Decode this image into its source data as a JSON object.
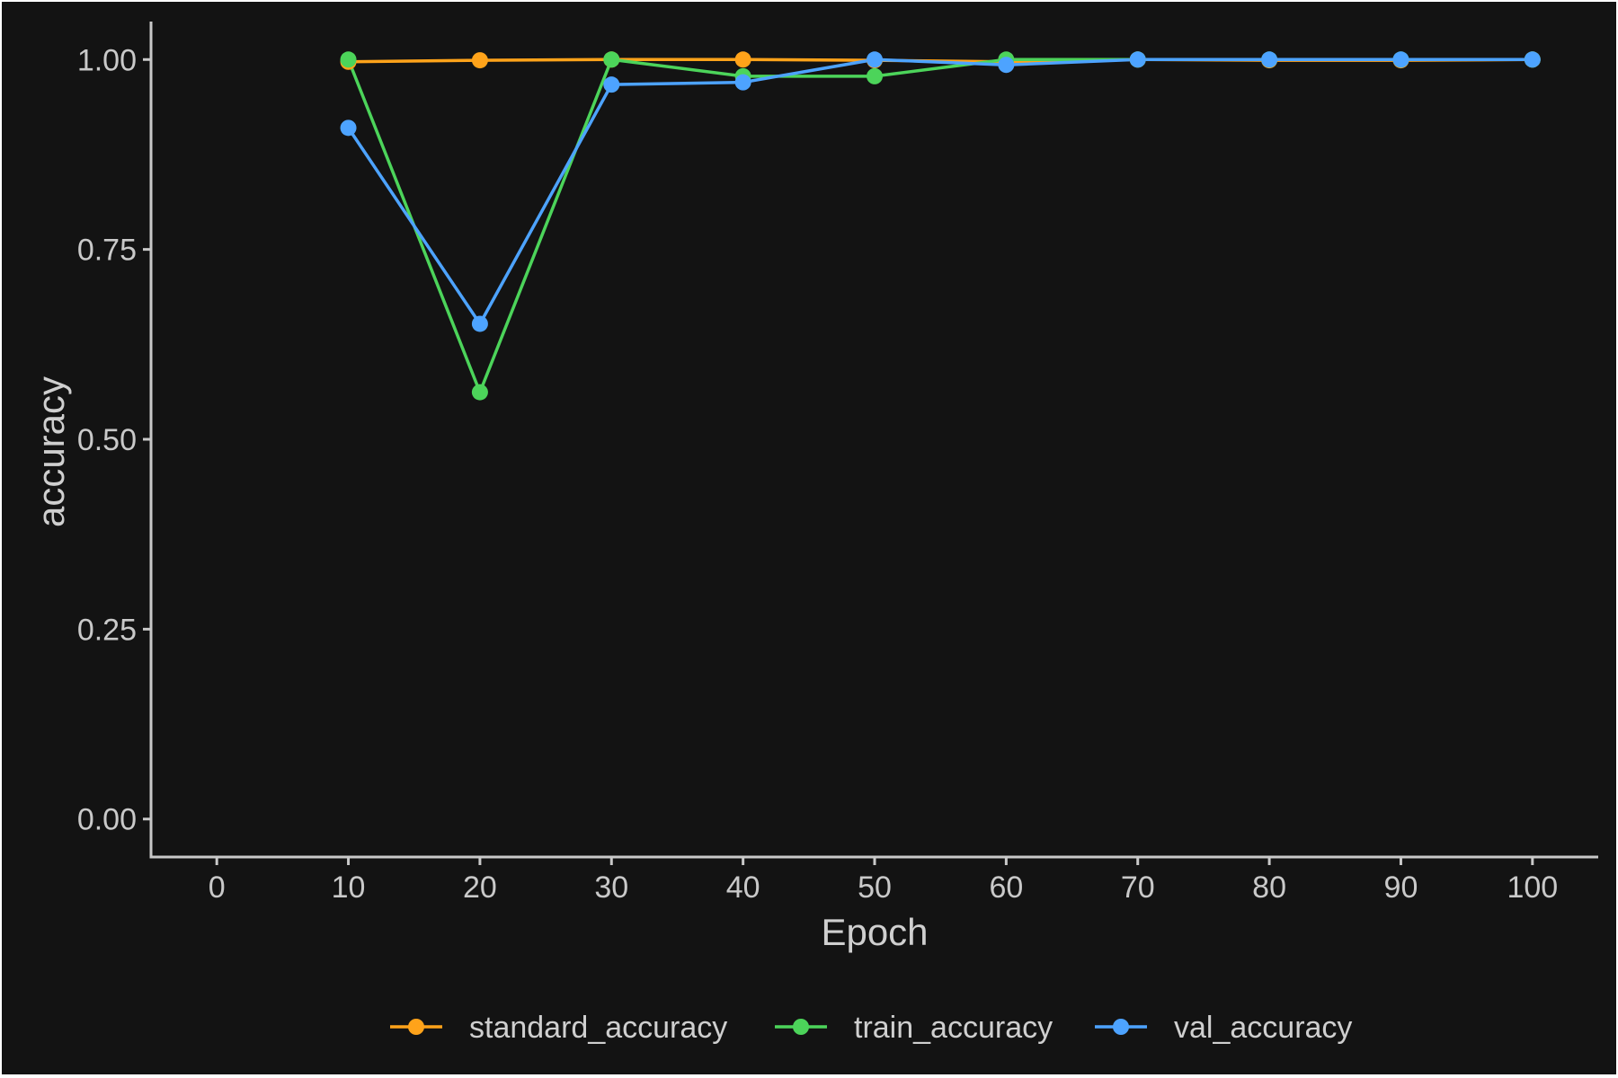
{
  "chart_data": {
    "type": "line",
    "xlabel": "Epoch",
    "ylabel": "accuracy",
    "xlim": [
      -5,
      105
    ],
    "ylim": [
      -0.05,
      1.05
    ],
    "x_ticks": [
      0,
      10,
      20,
      30,
      40,
      50,
      60,
      70,
      80,
      90,
      100
    ],
    "y_ticks": [
      0.0,
      0.25,
      0.5,
      0.75,
      1.0
    ],
    "y_tick_labels": [
      "0.00",
      "0.25",
      "0.50",
      "0.75",
      "1.00"
    ],
    "grid": false,
    "legend_position": "bottom",
    "x": [
      10,
      20,
      30,
      40,
      50,
      60,
      70,
      80,
      90,
      100
    ],
    "series": [
      {
        "name": "standard_accuracy",
        "color": "#ffa31a",
        "values": [
          0.997,
          0.999,
          1.0,
          1.0,
          0.999,
          0.997,
          1.0,
          0.999,
          0.999,
          1.0
        ]
      },
      {
        "name": "train_accuracy",
        "color": "#4cd45a",
        "values": [
          1.0,
          0.562,
          1.0,
          0.978,
          0.978,
          1.0,
          1.0,
          1.0,
          1.0,
          1.0
        ]
      },
      {
        "name": "val_accuracy",
        "color": "#4da3ff",
        "values": [
          0.91,
          0.652,
          0.967,
          0.97,
          1.0,
          0.993,
          1.0,
          1.0,
          1.0,
          1.0
        ]
      }
    ]
  }
}
